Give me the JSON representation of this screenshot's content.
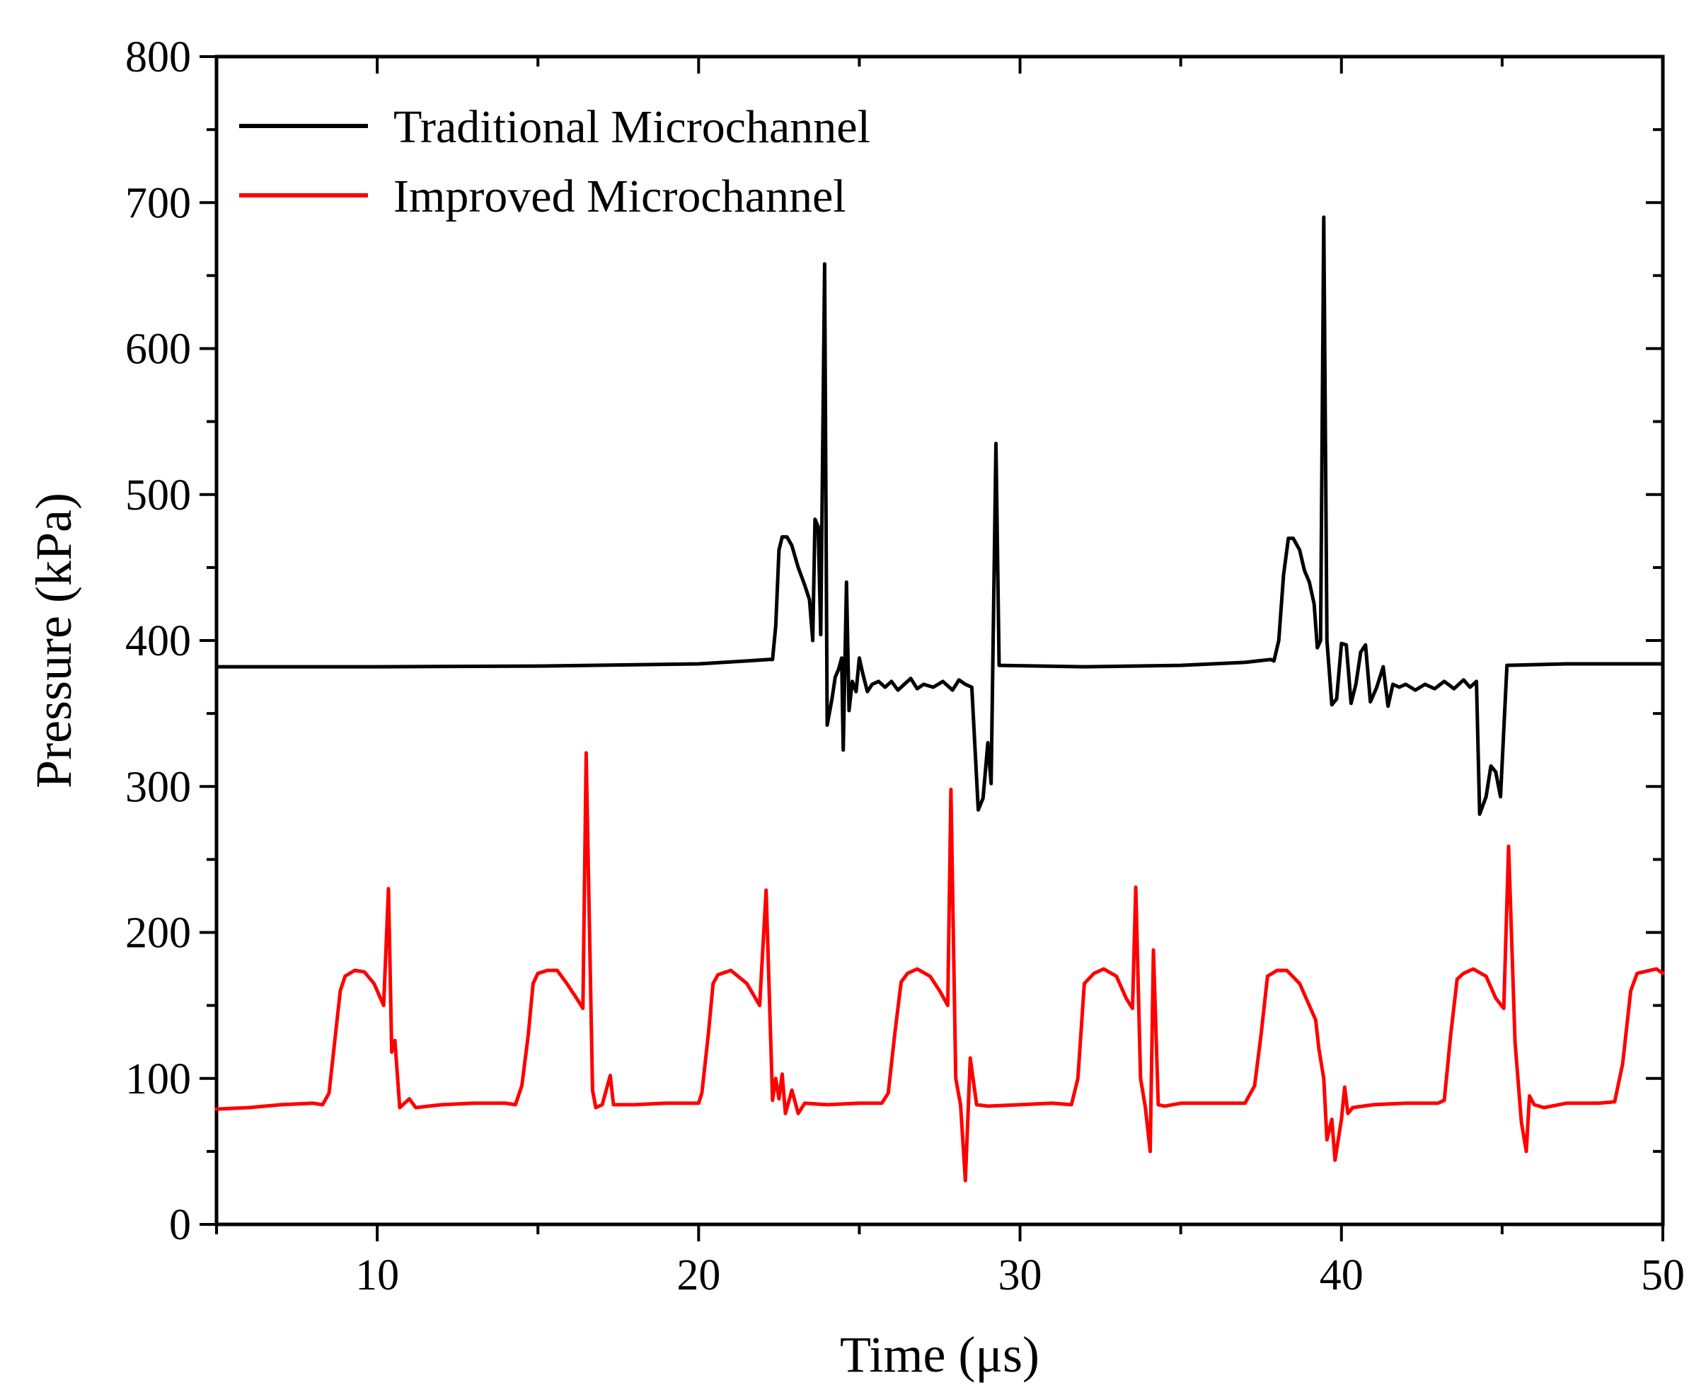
{
  "chart_data": {
    "type": "line",
    "xlabel": "Time (μs)",
    "ylabel": "Pressure (kPa)",
    "xlim": [
      5,
      50
    ],
    "ylim": [
      0,
      800
    ],
    "x_ticks": [
      10,
      20,
      30,
      40,
      50
    ],
    "y_ticks": [
      0,
      100,
      200,
      300,
      400,
      500,
      600,
      700,
      800
    ],
    "grid": false,
    "legend_position": "top-left",
    "series": [
      {
        "name": "Traditional Microchannel",
        "color": "#000000",
        "points": [
          [
            5,
            382
          ],
          [
            10,
            382
          ],
          [
            15,
            382.5
          ],
          [
            20,
            384
          ],
          [
            21.5,
            386
          ],
          [
            22.2,
            387
          ],
          [
            22.3,
            387
          ],
          [
            22.4,
            410
          ],
          [
            22.5,
            462
          ],
          [
            22.6,
            471
          ],
          [
            22.75,
            471
          ],
          [
            22.9,
            465
          ],
          [
            23.1,
            450
          ],
          [
            23.3,
            438
          ],
          [
            23.45,
            428
          ],
          [
            23.55,
            400
          ],
          [
            23.62,
            483
          ],
          [
            23.72,
            478
          ],
          [
            23.8,
            404
          ],
          [
            23.92,
            658
          ],
          [
            24.0,
            342
          ],
          [
            24.15,
            360
          ],
          [
            24.25,
            375
          ],
          [
            24.35,
            380
          ],
          [
            24.45,
            388
          ],
          [
            24.5,
            325
          ],
          [
            24.6,
            440
          ],
          [
            24.68,
            352
          ],
          [
            24.78,
            372
          ],
          [
            24.9,
            365
          ],
          [
            25.0,
            388
          ],
          [
            25.1,
            378
          ],
          [
            25.25,
            365
          ],
          [
            25.4,
            370
          ],
          [
            25.6,
            372
          ],
          [
            25.8,
            368
          ],
          [
            26.0,
            372
          ],
          [
            26.2,
            366
          ],
          [
            26.4,
            370
          ],
          [
            26.6,
            374
          ],
          [
            26.8,
            367
          ],
          [
            27.0,
            370
          ],
          [
            27.3,
            368
          ],
          [
            27.6,
            372
          ],
          [
            27.9,
            366
          ],
          [
            28.1,
            373
          ],
          [
            28.3,
            370
          ],
          [
            28.5,
            368
          ],
          [
            28.7,
            284
          ],
          [
            28.85,
            292
          ],
          [
            29.0,
            330
          ],
          [
            29.1,
            302
          ],
          [
            29.25,
            535
          ],
          [
            29.35,
            383
          ],
          [
            32,
            382
          ],
          [
            35,
            383
          ],
          [
            37,
            385
          ],
          [
            37.8,
            387
          ],
          [
            37.9,
            386
          ],
          [
            38.05,
            400
          ],
          [
            38.2,
            445
          ],
          [
            38.35,
            470
          ],
          [
            38.5,
            470
          ],
          [
            38.7,
            462
          ],
          [
            38.85,
            448
          ],
          [
            39.0,
            440
          ],
          [
            39.15,
            425
          ],
          [
            39.25,
            395
          ],
          [
            39.35,
            400
          ],
          [
            39.45,
            690
          ],
          [
            39.55,
            400
          ],
          [
            39.7,
            356
          ],
          [
            39.85,
            360
          ],
          [
            40.0,
            398
          ],
          [
            40.15,
            397
          ],
          [
            40.3,
            357
          ],
          [
            40.45,
            370
          ],
          [
            40.6,
            392
          ],
          [
            40.75,
            397
          ],
          [
            40.9,
            358
          ],
          [
            41.1,
            368
          ],
          [
            41.3,
            382
          ],
          [
            41.45,
            355
          ],
          [
            41.6,
            370
          ],
          [
            41.8,
            368
          ],
          [
            42.0,
            370
          ],
          [
            42.3,
            366
          ],
          [
            42.6,
            370
          ],
          [
            42.9,
            367
          ],
          [
            43.2,
            372
          ],
          [
            43.5,
            367
          ],
          [
            43.8,
            373
          ],
          [
            44.0,
            368
          ],
          [
            44.2,
            372
          ],
          [
            44.3,
            281
          ],
          [
            44.5,
            293
          ],
          [
            44.65,
            314
          ],
          [
            44.8,
            310
          ],
          [
            44.95,
            293
          ],
          [
            45.15,
            383
          ],
          [
            47,
            384
          ],
          [
            50,
            384
          ]
        ]
      },
      {
        "name": "Improved Microchannel",
        "color": "#ff0000",
        "points": [
          [
            5,
            79
          ],
          [
            6,
            80
          ],
          [
            7,
            82
          ],
          [
            8,
            83
          ],
          [
            8.3,
            82
          ],
          [
            8.5,
            90
          ],
          [
            8.7,
            130
          ],
          [
            8.85,
            160
          ],
          [
            9.0,
            170
          ],
          [
            9.3,
            174
          ],
          [
            9.6,
            173
          ],
          [
            9.9,
            165
          ],
          [
            10.2,
            150
          ],
          [
            10.35,
            230
          ],
          [
            10.45,
            118
          ],
          [
            10.55,
            126
          ],
          [
            10.7,
            80
          ],
          [
            11.0,
            86
          ],
          [
            11.2,
            80
          ],
          [
            12,
            82
          ],
          [
            13,
            83
          ],
          [
            14,
            83
          ],
          [
            14.3,
            82
          ],
          [
            14.5,
            95
          ],
          [
            14.7,
            130
          ],
          [
            14.85,
            165
          ],
          [
            15.0,
            172
          ],
          [
            15.3,
            174
          ],
          [
            15.6,
            174
          ],
          [
            15.9,
            165
          ],
          [
            16.2,
            155
          ],
          [
            16.4,
            148
          ],
          [
            16.5,
            323
          ],
          [
            16.7,
            92
          ],
          [
            16.8,
            80
          ],
          [
            17.0,
            82
          ],
          [
            17.25,
            102
          ],
          [
            17.35,
            82
          ],
          [
            18,
            82
          ],
          [
            19,
            83
          ],
          [
            20,
            83
          ],
          [
            20.1,
            90
          ],
          [
            20.3,
            130
          ],
          [
            20.45,
            165
          ],
          [
            20.6,
            171
          ],
          [
            21.0,
            174
          ],
          [
            21.5,
            165
          ],
          [
            21.9,
            150
          ],
          [
            22.1,
            229
          ],
          [
            22.3,
            85
          ],
          [
            22.4,
            100
          ],
          [
            22.5,
            86
          ],
          [
            22.6,
            103
          ],
          [
            22.7,
            76
          ],
          [
            22.9,
            92
          ],
          [
            23.1,
            76
          ],
          [
            23.3,
            83
          ],
          [
            24,
            82
          ],
          [
            25,
            83
          ],
          [
            25.7,
            83
          ],
          [
            25.9,
            90
          ],
          [
            26.1,
            130
          ],
          [
            26.3,
            166
          ],
          [
            26.5,
            172
          ],
          [
            26.8,
            175
          ],
          [
            27.2,
            170
          ],
          [
            27.5,
            160
          ],
          [
            27.75,
            150
          ],
          [
            27.85,
            298
          ],
          [
            28.0,
            100
          ],
          [
            28.15,
            82
          ],
          [
            28.3,
            30
          ],
          [
            28.45,
            114
          ],
          [
            28.65,
            82
          ],
          [
            29,
            81
          ],
          [
            30,
            82
          ],
          [
            31,
            83
          ],
          [
            31.6,
            82
          ],
          [
            31.8,
            100
          ],
          [
            32.0,
            165
          ],
          [
            32.3,
            172
          ],
          [
            32.6,
            175
          ],
          [
            33.0,
            170
          ],
          [
            33.3,
            155
          ],
          [
            33.5,
            148
          ],
          [
            33.6,
            231
          ],
          [
            33.75,
            100
          ],
          [
            33.9,
            80
          ],
          [
            34.05,
            50
          ],
          [
            34.15,
            188
          ],
          [
            34.3,
            82
          ],
          [
            34.5,
            81
          ],
          [
            35,
            83
          ],
          [
            36,
            83
          ],
          [
            37,
            83
          ],
          [
            37.3,
            95
          ],
          [
            37.5,
            130
          ],
          [
            37.7,
            170
          ],
          [
            38.0,
            174
          ],
          [
            38.3,
            174
          ],
          [
            38.7,
            165
          ],
          [
            39.0,
            150
          ],
          [
            39.2,
            140
          ],
          [
            39.3,
            120
          ],
          [
            39.45,
            100
          ],
          [
            39.55,
            58
          ],
          [
            39.7,
            72
          ],
          [
            39.8,
            44
          ],
          [
            40.0,
            72
          ],
          [
            40.1,
            94
          ],
          [
            40.2,
            76
          ],
          [
            40.35,
            80
          ],
          [
            41,
            82
          ],
          [
            42,
            83
          ],
          [
            43,
            83
          ],
          [
            43.2,
            85
          ],
          [
            43.4,
            130
          ],
          [
            43.6,
            168
          ],
          [
            43.8,
            172
          ],
          [
            44.1,
            175
          ],
          [
            44.5,
            170
          ],
          [
            44.8,
            155
          ],
          [
            45.05,
            148
          ],
          [
            45.2,
            259
          ],
          [
            45.4,
            125
          ],
          [
            45.6,
            70
          ],
          [
            45.75,
            50
          ],
          [
            45.85,
            88
          ],
          [
            46.0,
            82
          ],
          [
            46.3,
            80
          ],
          [
            47,
            83
          ],
          [
            48,
            83
          ],
          [
            48.5,
            84
          ],
          [
            48.75,
            110
          ],
          [
            49.0,
            160
          ],
          [
            49.2,
            172
          ],
          [
            49.6,
            174
          ],
          [
            49.8,
            175
          ],
          [
            50,
            172
          ]
        ]
      }
    ]
  }
}
